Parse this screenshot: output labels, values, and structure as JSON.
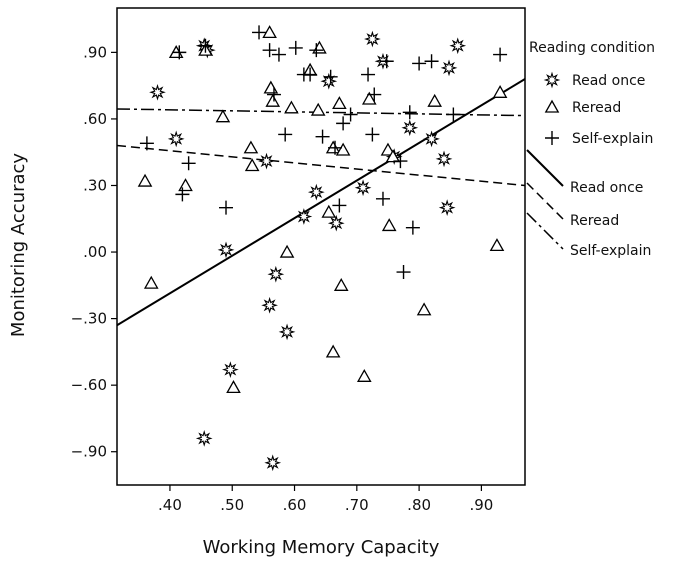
{
  "chart_data": {
    "type": "scatter",
    "xlabel": "Working Memory Capacity",
    "ylabel": "Monitoring Accuracy",
    "xlim": [
      0.315,
      0.97
    ],
    "ylim": [
      -1.05,
      1.1
    ],
    "x_ticks": [
      {
        "value": 0.4,
        "label": ".40"
      },
      {
        "value": 0.5,
        "label": ".50"
      },
      {
        "value": 0.6,
        "label": ".60"
      },
      {
        "value": 0.7,
        "label": ".70"
      },
      {
        "value": 0.8,
        "label": ".80"
      },
      {
        "value": 0.9,
        "label": ".90"
      }
    ],
    "y_ticks": [
      {
        "value": 0.9,
        "label": ".90"
      },
      {
        "value": 0.6,
        "label": ".60"
      },
      {
        "value": 0.3,
        "label": ".30"
      },
      {
        "value": 0.0,
        "label": ".00"
      },
      {
        "value": -0.3,
        "label": "−.30"
      },
      {
        "value": -0.6,
        "label": "−.60"
      },
      {
        "value": -0.9,
        "label": "−.90"
      }
    ],
    "grid": false,
    "legend_title": "Reading condition",
    "legend_placement": "right",
    "series": [
      {
        "name": "Read once",
        "marker": "star",
        "points": [
          [
            0.38,
            0.72
          ],
          [
            0.41,
            0.51
          ],
          [
            0.455,
            0.93
          ],
          [
            0.46,
            0.91
          ],
          [
            0.49,
            0.01
          ],
          [
            0.497,
            -0.53
          ],
          [
            0.455,
            -0.84
          ],
          [
            0.555,
            0.41
          ],
          [
            0.565,
            -0.95
          ],
          [
            0.56,
            -0.24
          ],
          [
            0.57,
            -0.1
          ],
          [
            0.588,
            -0.36
          ],
          [
            0.615,
            0.16
          ],
          [
            0.635,
            0.27
          ],
          [
            0.655,
            0.77
          ],
          [
            0.667,
            0.13
          ],
          [
            0.725,
            0.96
          ],
          [
            0.71,
            0.29
          ],
          [
            0.742,
            0.86
          ],
          [
            0.76,
            0.43
          ],
          [
            0.785,
            0.56
          ],
          [
            0.82,
            0.51
          ],
          [
            0.848,
            0.83
          ],
          [
            0.84,
            0.42
          ],
          [
            0.845,
            0.2
          ],
          [
            0.862,
            0.93
          ]
        ]
      },
      {
        "name": "Reread",
        "marker": "triangle",
        "points": [
          [
            0.36,
            0.32
          ],
          [
            0.37,
            -0.14
          ],
          [
            0.41,
            0.9
          ],
          [
            0.425,
            0.3
          ],
          [
            0.457,
            0.91
          ],
          [
            0.485,
            0.61
          ],
          [
            0.502,
            -0.61
          ],
          [
            0.53,
            0.47
          ],
          [
            0.532,
            0.39
          ],
          [
            0.56,
            0.99
          ],
          [
            0.562,
            0.74
          ],
          [
            0.565,
            0.68
          ],
          [
            0.588,
            0.0
          ],
          [
            0.595,
            0.65
          ],
          [
            0.625,
            0.82
          ],
          [
            0.64,
            0.92
          ],
          [
            0.638,
            0.64
          ],
          [
            0.655,
            0.18
          ],
          [
            0.662,
            0.47
          ],
          [
            0.672,
            0.67
          ],
          [
            0.678,
            0.46
          ],
          [
            0.662,
            -0.45
          ],
          [
            0.675,
            -0.15
          ],
          [
            0.712,
            -0.56
          ],
          [
            0.72,
            0.69
          ],
          [
            0.75,
            0.46
          ],
          [
            0.752,
            0.12
          ],
          [
            0.758,
            0.43
          ],
          [
            0.808,
            -0.26
          ],
          [
            0.825,
            0.68
          ],
          [
            0.925,
            0.03
          ],
          [
            0.93,
            0.72
          ]
        ]
      },
      {
        "name": "Self-explain",
        "marker": "plus",
        "points": [
          [
            0.363,
            0.49
          ],
          [
            0.415,
            0.9
          ],
          [
            0.42,
            0.26
          ],
          [
            0.43,
            0.4
          ],
          [
            0.457,
            0.93
          ],
          [
            0.49,
            0.2
          ],
          [
            0.543,
            0.99
          ],
          [
            0.56,
            0.91
          ],
          [
            0.567,
            0.71
          ],
          [
            0.575,
            0.89
          ],
          [
            0.585,
            0.53
          ],
          [
            0.602,
            0.92
          ],
          [
            0.615,
            0.8
          ],
          [
            0.625,
            0.8
          ],
          [
            0.635,
            0.91
          ],
          [
            0.645,
            0.52
          ],
          [
            0.658,
            0.79
          ],
          [
            0.665,
            0.47
          ],
          [
            0.672,
            0.21
          ],
          [
            0.678,
            0.58
          ],
          [
            0.69,
            0.62
          ],
          [
            0.718,
            0.8
          ],
          [
            0.725,
            0.53
          ],
          [
            0.728,
            0.71
          ],
          [
            0.742,
            0.24
          ],
          [
            0.748,
            0.86
          ],
          [
            0.77,
            0.41
          ],
          [
            0.775,
            -0.09
          ],
          [
            0.79,
            0.11
          ],
          [
            0.785,
            0.63
          ],
          [
            0.8,
            0.85
          ],
          [
            0.82,
            0.86
          ],
          [
            0.855,
            0.62
          ],
          [
            0.93,
            0.89
          ]
        ]
      }
    ],
    "fit_lines": [
      {
        "name": "Read once",
        "style": "solid",
        "x": [
          0.315,
          0.97
        ],
        "y": [
          -0.33,
          0.78
        ]
      },
      {
        "name": "Reread",
        "style": "dashed",
        "x": [
          0.315,
          0.97
        ],
        "y": [
          0.48,
          0.3
        ]
      },
      {
        "name": "Self-explain",
        "style": "dash-dot",
        "x": [
          0.315,
          0.97
        ],
        "y": [
          0.645,
          0.615
        ]
      }
    ]
  }
}
